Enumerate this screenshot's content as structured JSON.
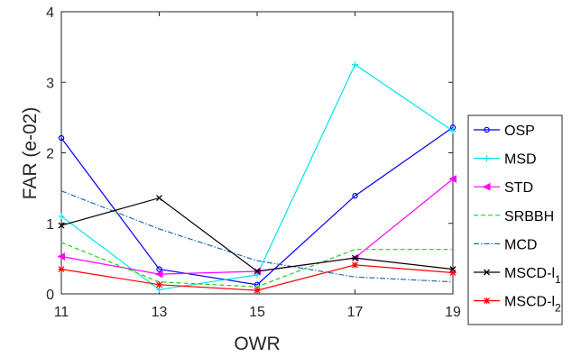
{
  "chart_data": {
    "type": "line",
    "xlabel": "OWR",
    "ylabel": "FAR (e-02)",
    "x": [
      11,
      13,
      15,
      17,
      19
    ],
    "xlim": [
      11,
      19
    ],
    "ylim": [
      0,
      4
    ],
    "x_ticks": [
      "11",
      "13",
      "15",
      "17",
      "19"
    ],
    "y_ticks": [
      "0",
      "1",
      "2",
      "3",
      "4"
    ],
    "grid": false,
    "legend_position": "outside-right",
    "series": [
      {
        "name": "OSP",
        "sub": "",
        "color": "#0000ff",
        "dash": "",
        "marker": "circle",
        "values": [
          2.21,
          0.35,
          0.13,
          1.39,
          2.36
        ]
      },
      {
        "name": "MSD",
        "sub": "",
        "color": "#00e5ee",
        "dash": "",
        "marker": "plus",
        "values": [
          1.1,
          0.06,
          0.27,
          3.25,
          2.31
        ]
      },
      {
        "name": "STD",
        "sub": "",
        "color": "#ff00ff",
        "dash": "",
        "marker": "triangle-left",
        "values": [
          0.53,
          0.28,
          0.32,
          0.51,
          1.63
        ]
      },
      {
        "name": "SRBBH",
        "sub": "",
        "color": "#22cc22",
        "dash": "5,3",
        "marker": "none",
        "values": [
          0.73,
          0.17,
          0.1,
          0.63,
          0.63
        ]
      },
      {
        "name": "MCD",
        "sub": "",
        "color": "#1a6fb0",
        "dash": "6,2,1.5,2",
        "marker": "none",
        "values": [
          1.46,
          0.92,
          0.47,
          0.24,
          0.17
        ]
      },
      {
        "name": "MSCD-l",
        "sub": "1",
        "color": "#000000",
        "dash": "",
        "marker": "x",
        "values": [
          0.97,
          1.36,
          0.32,
          0.51,
          0.35
        ]
      },
      {
        "name": "MSCD-l",
        "sub": "2",
        "color": "#ff0000",
        "dash": "",
        "marker": "asterisk",
        "values": [
          0.35,
          0.13,
          0.05,
          0.41,
          0.3
        ]
      }
    ]
  }
}
